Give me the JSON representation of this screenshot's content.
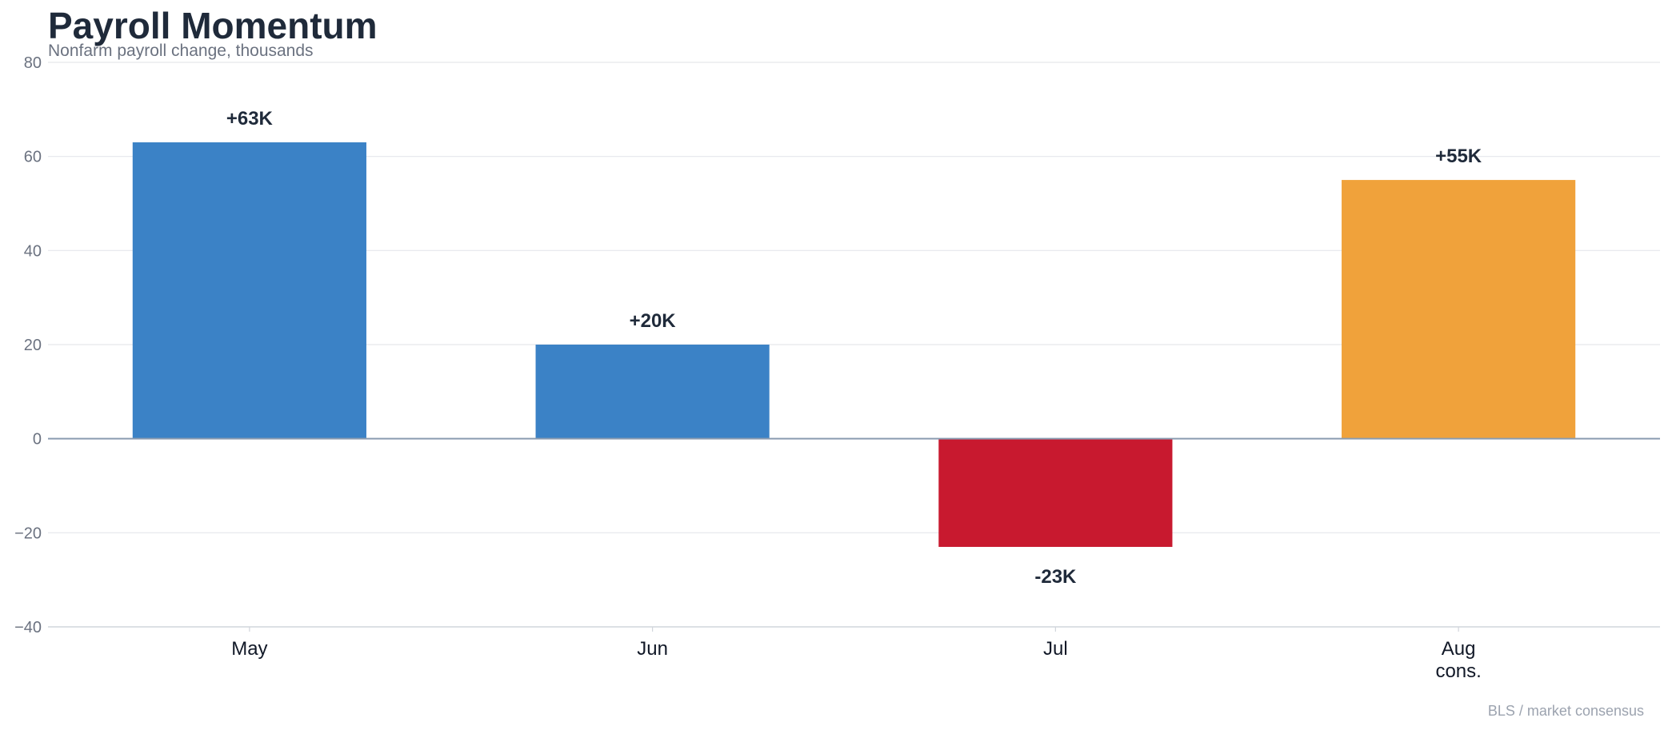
{
  "chart_data": {
    "type": "bar",
    "title": "Payroll Momentum",
    "subtitle": "Nonfarm payroll change, thousands",
    "xlabel": "",
    "ylabel": "",
    "categories": [
      [
        "May"
      ],
      [
        "Jun"
      ],
      [
        "Jul"
      ],
      [
        "Aug",
        "cons."
      ]
    ],
    "values": [
      63,
      20,
      -23,
      55
    ],
    "data_labels": [
      "+63K",
      "+20K",
      "-23K",
      "+55K"
    ],
    "bar_colors": [
      "#3b82c6",
      "#3b82c6",
      "#c8192f",
      "#f0a23b"
    ],
    "ylim": [
      -40,
      80
    ],
    "yticks": [
      -40,
      -20,
      0,
      20,
      40,
      60,
      80
    ],
    "ytick_labels": [
      "−40",
      "−20",
      "0",
      "20",
      "40",
      "60",
      "80"
    ],
    "grid": true,
    "legend": "none",
    "source": "BLS / market consensus"
  }
}
